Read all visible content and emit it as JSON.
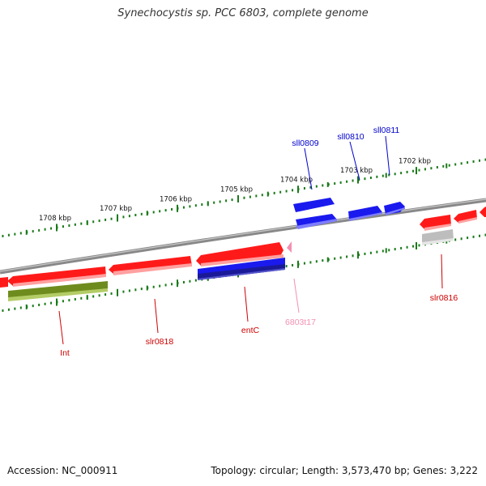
{
  "title": "Synechocystis sp. PCC 6803, complete genome",
  "footer": {
    "accession": "Accession: NC_000911",
    "topology": "Topology: circular; Length: 3,573,470 bp; Genes: 3,222"
  },
  "colors": {
    "forward_gene": "#ff1a1a",
    "reverse_gene": "#1515e6",
    "olive_feature": "#6e8c1e",
    "pseudo_gray": "#bdbdbd",
    "trna_pink": "#f48fb1",
    "backbone": "#8a8a8a",
    "tick_green": "#1a7a1a",
    "label_red": "#cc0000",
    "label_blue": "#0000cc"
  },
  "ticks": [
    {
      "label": "1708 kbp"
    },
    {
      "label": "1707 kbp"
    },
    {
      "label": "1706 kbp"
    },
    {
      "label": "1705 kbp"
    },
    {
      "label": "1704 kbp"
    },
    {
      "label": "1703 kbp"
    },
    {
      "label": "1702 kbp"
    }
  ],
  "gene_labels": {
    "sll0809": "sll0809",
    "sll0810": "sll0810",
    "sll0811": "sll0811",
    "int": "Int",
    "slr0818": "slr0818",
    "entC": "entC",
    "t6803t17": "6803t17",
    "slr0816": "slr0816"
  }
}
